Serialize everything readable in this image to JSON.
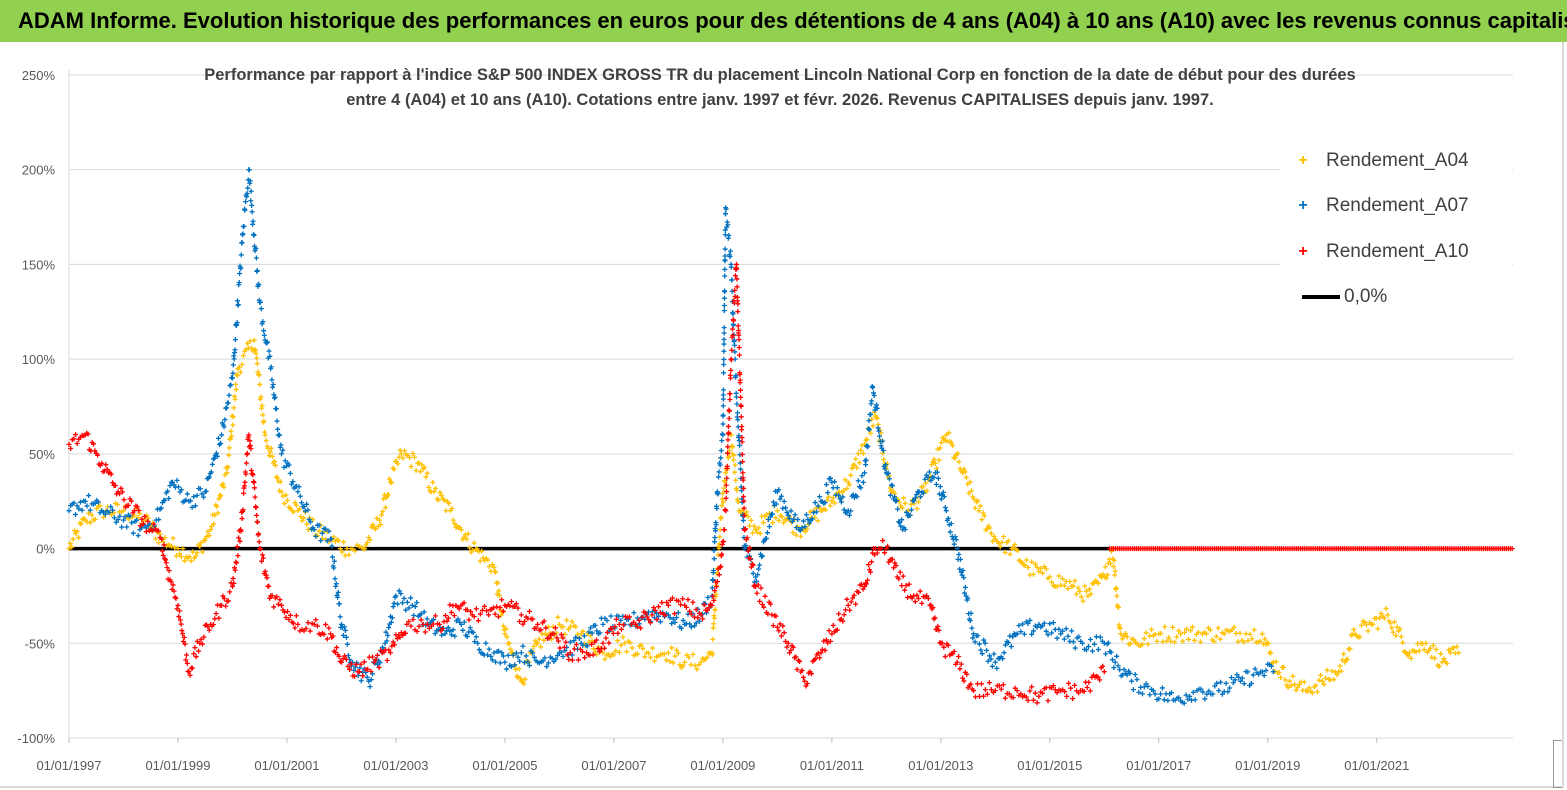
{
  "banner": {
    "title": "ADAM Informe. Evolution historique des performances en euros pour des détentions de 4 ans (A04) à 10 ans (A10) avec les revenus connus capitalisés"
  },
  "chart_data": {
    "type": "scatter",
    "title_line1": "Performance par rapport à l'indice S&P 500 INDEX GROSS TR  du placement Lincoln National Corp en fonction de la date de début pour des durées",
    "title_line2": "entre 4 (A04) et 10 ans (A10).  Cotations entre janv. 1997 et févr. 2026. Revenus  CAPITALISES depuis janv. 1997.",
    "xlabel": "",
    "ylabel": "",
    "xlim": [
      1997.0,
      2023.5
    ],
    "ylim": [
      -100,
      250
    ],
    "y_ticks": [
      250,
      200,
      150,
      100,
      50,
      0,
      -50,
      -100
    ],
    "y_tick_labels": [
      "250%",
      "200%",
      "150%",
      "100%",
      "50%",
      "0%",
      "-50%",
      "-100%"
    ],
    "x_ticks": [
      1997,
      1999,
      2001,
      2003,
      2005,
      2007,
      2009,
      2011,
      2013,
      2015,
      2017,
      2019,
      2021
    ],
    "x_tick_labels": [
      "01/01/1997",
      "01/01/1999",
      "01/01/2001",
      "01/01/2003",
      "01/01/2005",
      "01/01/2007",
      "01/01/2009",
      "01/01/2011",
      "01/01/2013",
      "01/01/2015",
      "01/01/2017",
      "01/01/2019",
      "01/01/2021"
    ],
    "grid": "horizontal",
    "legend_position": "top-right",
    "series": [
      {
        "name": "Rendement_A04",
        "color": "#ffc000",
        "x": [
          1997.0,
          1997.3,
          1997.6,
          1998.0,
          1998.4,
          1998.7,
          1999.0,
          1999.3,
          1999.6,
          1999.9,
          2000.1,
          2000.4,
          2000.6,
          2000.9,
          2001.2,
          2001.5,
          2001.8,
          2002.1,
          2002.4,
          2002.7,
          2002.9,
          2003.1,
          2003.4,
          2003.7,
          2004.0,
          2004.3,
          2004.6,
          2004.8,
          2005.0,
          2005.3,
          2005.6,
          2006.0,
          2006.4,
          2006.8,
          2007.2,
          2007.6,
          2008.0,
          2008.3,
          2008.6,
          2008.8,
          2008.95,
          2009.05,
          2009.15,
          2009.3,
          2009.6,
          2010.0,
          2010.4,
          2010.8,
          2011.0,
          2011.3,
          2011.6,
          2011.8,
          2012.1,
          2012.4,
          2012.7,
          2012.9,
          2013.1,
          2013.4,
          2013.7,
          2014.0,
          2014.3,
          2014.6,
          2015.0,
          2015.4,
          2015.7,
          2016.0,
          2016.15,
          2016.3,
          2016.6,
          2017.0,
          2017.4,
          2017.8,
          2018.2,
          2018.6,
          2018.9,
          2019.1,
          2019.4,
          2019.7,
          2020.0,
          2020.3,
          2020.6,
          2020.9,
          2021.2,
          2021.6,
          2021.9,
          2022.2,
          2022.5
        ],
        "values": [
          0,
          15,
          20,
          20,
          15,
          5,
          0,
          -5,
          10,
          40,
          95,
          110,
          60,
          30,
          20,
          10,
          5,
          0,
          0,
          15,
          35,
          50,
          45,
          30,
          20,
          5,
          -5,
          -10,
          -45,
          -70,
          -50,
          -40,
          -45,
          -55,
          -50,
          -55,
          -55,
          -60,
          -60,
          -55,
          10,
          40,
          60,
          20,
          10,
          20,
          10,
          20,
          25,
          35,
          55,
          70,
          30,
          20,
          30,
          45,
          60,
          40,
          20,
          5,
          0,
          -10,
          -15,
          -20,
          -25,
          -15,
          0,
          -45,
          -50,
          -45,
          -45,
          -45,
          -45,
          -45,
          -45,
          -60,
          -70,
          -75,
          -70,
          -65,
          -45,
          -40,
          -35,
          -55,
          -50,
          -60,
          -55
        ]
      },
      {
        "name": "Rendement_A07",
        "color": "#0070c0",
        "x": [
          1997.0,
          1997.3,
          1997.6,
          1998.0,
          1998.3,
          1998.6,
          1998.9,
          1999.2,
          1999.5,
          1999.8,
          2000.0,
          2000.2,
          2000.3,
          2000.5,
          2000.7,
          2000.9,
          2001.2,
          2001.5,
          2001.8,
          2002.0,
          2002.2,
          2002.5,
          2002.8,
          2003.0,
          2003.3,
          2003.6,
          2003.9,
          2004.2,
          2004.5,
          2004.8,
          2005.0,
          2005.3,
          2005.6,
          2006.0,
          2006.4,
          2006.8,
          2007.2,
          2007.6,
          2008.0,
          2008.3,
          2008.6,
          2008.8,
          2008.9,
          2009.0,
          2009.05,
          2009.15,
          2009.25,
          2009.4,
          2009.6,
          2010.0,
          2010.4,
          2010.8,
          2011.0,
          2011.3,
          2011.6,
          2011.75,
          2012.0,
          2012.3,
          2012.6,
          2012.9,
          2013.1,
          2013.3,
          2013.6,
          2014.0,
          2014.4,
          2014.8,
          2015.2,
          2015.6,
          2016.0,
          2016.2,
          2016.5,
          2016.9,
          2017.3,
          2017.7,
          2018.1,
          2018.5,
          2018.9,
          2019.1
        ],
        "values": [
          20,
          25,
          20,
          15,
          10,
          15,
          35,
          25,
          30,
          60,
          90,
          170,
          200,
          130,
          95,
          50,
          30,
          10,
          5,
          -40,
          -60,
          -70,
          -50,
          -25,
          -30,
          -40,
          -45,
          -40,
          -50,
          -55,
          -60,
          -55,
          -60,
          -55,
          -50,
          -40,
          -40,
          -35,
          -35,
          -40,
          -35,
          -25,
          30,
          60,
          180,
          150,
          80,
          0,
          -15,
          30,
          10,
          25,
          35,
          20,
          40,
          85,
          40,
          10,
          30,
          40,
          20,
          0,
          -45,
          -60,
          -45,
          -40,
          -45,
          -50,
          -50,
          -60,
          -70,
          -75,
          -80,
          -75,
          -75,
          -70,
          -65,
          -65
        ]
      },
      {
        "name": "Rendement_A10",
        "color": "#ff0000",
        "x": [
          1997.0,
          1997.3,
          1997.6,
          1997.9,
          1998.2,
          1998.5,
          1998.7,
          1998.8,
          1999.0,
          1999.2,
          1999.4,
          1999.6,
          1999.8,
          2000.0,
          2000.15,
          2000.3,
          2000.5,
          2000.7,
          2000.9,
          2001.2,
          2001.5,
          2001.8,
          2002.0,
          2002.3,
          2002.6,
          2002.9,
          2003.2,
          2003.5,
          2003.8,
          2004.1,
          2004.4,
          2004.7,
          2005.0,
          2005.3,
          2005.6,
          2005.9,
          2006.2,
          2006.5,
          2006.8,
          2007.1,
          2007.4,
          2007.7,
          2008.0,
          2008.3,
          2008.6,
          2008.8,
          2008.95,
          2009.05,
          2009.15,
          2009.25,
          2009.4,
          2009.6,
          2009.9,
          2010.2,
          2010.5,
          2010.8,
          2011.0,
          2011.3,
          2011.6,
          2011.8,
          2012.0,
          2012.2,
          2012.5,
          2012.8,
          2013.0,
          2013.3,
          2013.6,
          2014.0,
          2014.4,
          2014.8,
          2015.2,
          2015.6,
          2016.0
        ],
        "values": [
          55,
          60,
          45,
          30,
          20,
          10,
          5,
          -10,
          -30,
          -65,
          -50,
          -40,
          -30,
          -20,
          10,
          60,
          0,
          -25,
          -30,
          -40,
          -40,
          -45,
          -60,
          -65,
          -60,
          -55,
          -40,
          -40,
          -40,
          -30,
          -35,
          -35,
          -30,
          -35,
          -40,
          -45,
          -55,
          -55,
          -50,
          -40,
          -40,
          -35,
          -30,
          -30,
          -35,
          -30,
          -10,
          20,
          100,
          150,
          10,
          -20,
          -35,
          -50,
          -70,
          -55,
          -45,
          -30,
          -20,
          0,
          0,
          -15,
          -25,
          -30,
          -50,
          -60,
          -75,
          -75,
          -75,
          -78,
          -75,
          -75,
          -65
        ]
      },
      {
        "name": "0,0%",
        "color": "#000000",
        "x": [
          1997.0,
          2016.1
        ],
        "values": [
          0,
          0
        ]
      }
    ],
    "zero_marker_series": {
      "series_name": "Rendement_A10",
      "x_start": 2016.1,
      "x_end": 2023.5,
      "value": 0
    }
  },
  "legend": {
    "items": [
      {
        "label": "Rendement_A04",
        "marker": "+",
        "color": "#ffc000"
      },
      {
        "label": "Rendement_A07",
        "marker": "+",
        "color": "#0070c0"
      },
      {
        "label": "Rendement_A10",
        "marker": "+",
        "color": "#ff0000"
      },
      {
        "label": "0,0%",
        "marker": "line",
        "color": "#000000"
      }
    ]
  }
}
